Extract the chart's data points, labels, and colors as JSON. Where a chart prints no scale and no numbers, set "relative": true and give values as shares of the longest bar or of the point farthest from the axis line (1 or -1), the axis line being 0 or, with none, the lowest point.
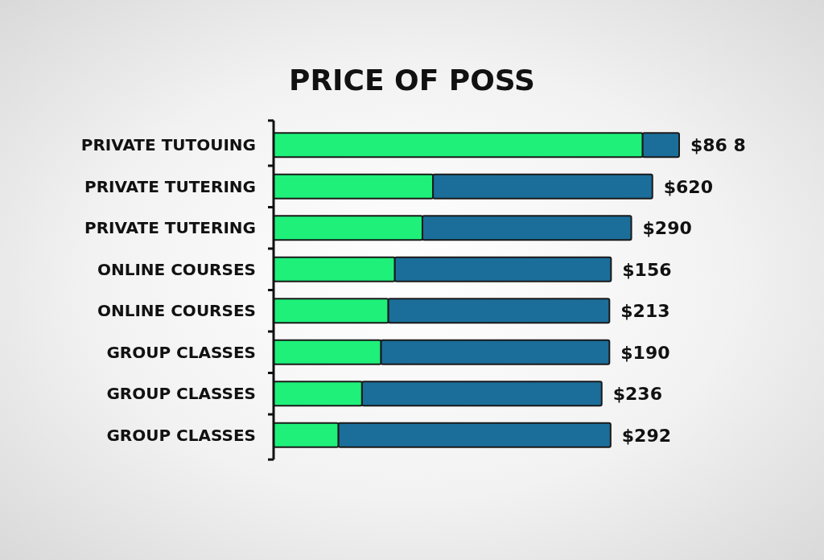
{
  "chart_data": {
    "type": "bar",
    "orientation": "horizontal",
    "stacked": true,
    "relative": true,
    "title": "PRICE OF POSS",
    "categories": [
      "PRIVATE TUTOUING",
      "PRIVATE TUTERING",
      "PRIVATE TUTERING",
      "ONLINE COURSES",
      "ONLINE COURSES",
      "GROUP CLASSES",
      "GROUP CLASSES",
      "GROUP CLASSES"
    ],
    "series": [
      {
        "color": "#1ef07a",
        "values": [
          0.91,
          0.393,
          0.367,
          0.299,
          0.283,
          0.265,
          0.218,
          0.16
        ]
      },
      {
        "color": "#1b6e9a",
        "values": [
          0.09,
          0.541,
          0.515,
          0.533,
          0.545,
          0.563,
          0.591,
          0.671
        ]
      }
    ],
    "annotations": [
      "$86 8",
      "$620",
      "$290",
      "$156",
      "$213",
      "$190",
      "$236",
      "$292"
    ]
  }
}
